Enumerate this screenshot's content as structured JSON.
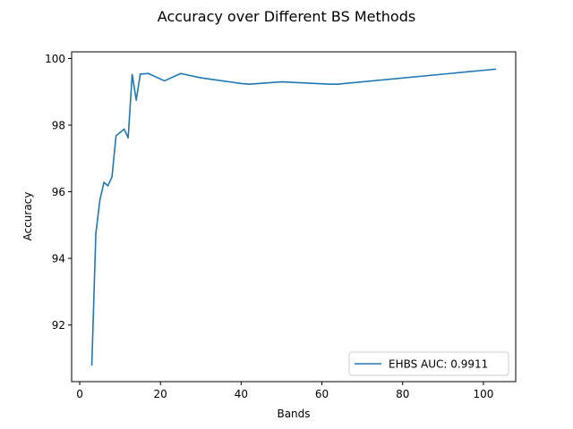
{
  "chart_data": {
    "type": "line",
    "title": "Accuracy over Different BS Methods",
    "xlabel": "Bands",
    "ylabel": "Accuracy",
    "xlim": [
      -2,
      108
    ],
    "ylim": [
      90.3,
      100.2
    ],
    "xticks": [
      0,
      20,
      40,
      60,
      80,
      100
    ],
    "yticks": [
      92,
      94,
      96,
      98,
      100
    ],
    "grid": false,
    "legend_position": "lower right",
    "series": [
      {
        "name": "EHBS AUC: 0.9911",
        "color": "#1f77b4",
        "x": [
          3,
          4,
          5,
          6,
          7,
          8,
          9,
          11,
          12,
          13,
          14,
          15,
          17,
          21,
          25,
          30,
          40,
          42,
          50,
          62,
          64,
          103
        ],
        "y": [
          90.8,
          94.75,
          95.75,
          96.28,
          96.18,
          96.45,
          97.68,
          97.88,
          97.62,
          99.52,
          98.75,
          99.53,
          99.55,
          99.33,
          99.55,
          99.42,
          99.25,
          99.23,
          99.3,
          99.23,
          99.23,
          99.68
        ]
      }
    ]
  }
}
